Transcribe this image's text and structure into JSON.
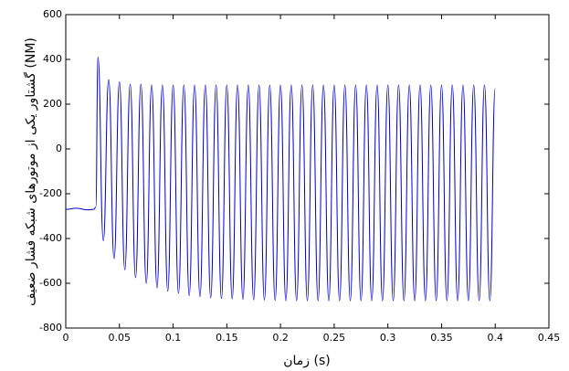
{
  "chart_data": {
    "type": "line",
    "x_label": "زمان (s)",
    "y_label": "گشتاور یکی از موتورهای شبکه فشار ضعیف (NM)",
    "xlim": [
      0,
      0.45
    ],
    "xticks": [
      0,
      0.05,
      0.1,
      0.15,
      0.2,
      0.25,
      0.3,
      0.35,
      0.4,
      0.45
    ],
    "ylim": [
      -800,
      600
    ],
    "yticks": [
      -800,
      -600,
      -400,
      -200,
      0,
      200,
      400,
      600
    ],
    "grid": false,
    "series": [
      {
        "color": "#0000cc",
        "x": [
          0,
          0.01,
          0.02,
          0.026,
          0.028,
          0.03,
          0.035,
          0.04,
          0.045,
          0.05,
          0.055,
          0.06,
          0.065,
          0.07,
          0.075,
          0.08,
          0.085,
          0.09,
          0.095,
          0.1,
          0.105,
          0.11,
          0.115,
          0.12,
          0.125,
          0.13,
          0.135,
          0.14,
          0.145,
          0.15,
          0.155,
          0.16,
          0.165,
          0.17,
          0.175,
          0.18,
          0.185,
          0.19,
          0.195,
          0.2,
          0.205,
          0.21,
          0.215,
          0.22,
          0.225,
          0.23,
          0.235,
          0.24,
          0.245,
          0.25,
          0.255,
          0.26,
          0.265,
          0.27,
          0.275,
          0.28,
          0.285,
          0.29,
          0.295,
          0.3,
          0.305,
          0.31,
          0.315,
          0.32,
          0.325,
          0.33,
          0.335,
          0.34,
          0.345,
          0.35,
          0.355,
          0.36,
          0.365,
          0.37,
          0.375,
          0.38,
          0.385,
          0.39,
          0.395,
          0.4
        ],
        "values": [
          -270,
          -265,
          -272,
          -270,
          -260,
          410,
          -410,
          310,
          -490,
          300,
          -540,
          290,
          -575,
          290,
          -600,
          285,
          -620,
          285,
          -635,
          285,
          -645,
          285,
          -655,
          285,
          -660,
          285,
          -665,
          285,
          -668,
          285,
          -670,
          285,
          -672,
          285,
          -674,
          285,
          -675,
          285,
          -676,
          285,
          -678,
          285,
          -678,
          285,
          -678,
          285,
          -678,
          285,
          -678,
          285,
          -678,
          285,
          -678,
          285,
          -678,
          285,
          -678,
          285,
          -678,
          285,
          -678,
          285,
          -678,
          285,
          -678,
          285,
          -678,
          285,
          -678,
          285,
          -678,
          285,
          -678,
          285,
          -678,
          285,
          -678,
          285,
          -678,
          270
        ]
      }
    ]
  }
}
